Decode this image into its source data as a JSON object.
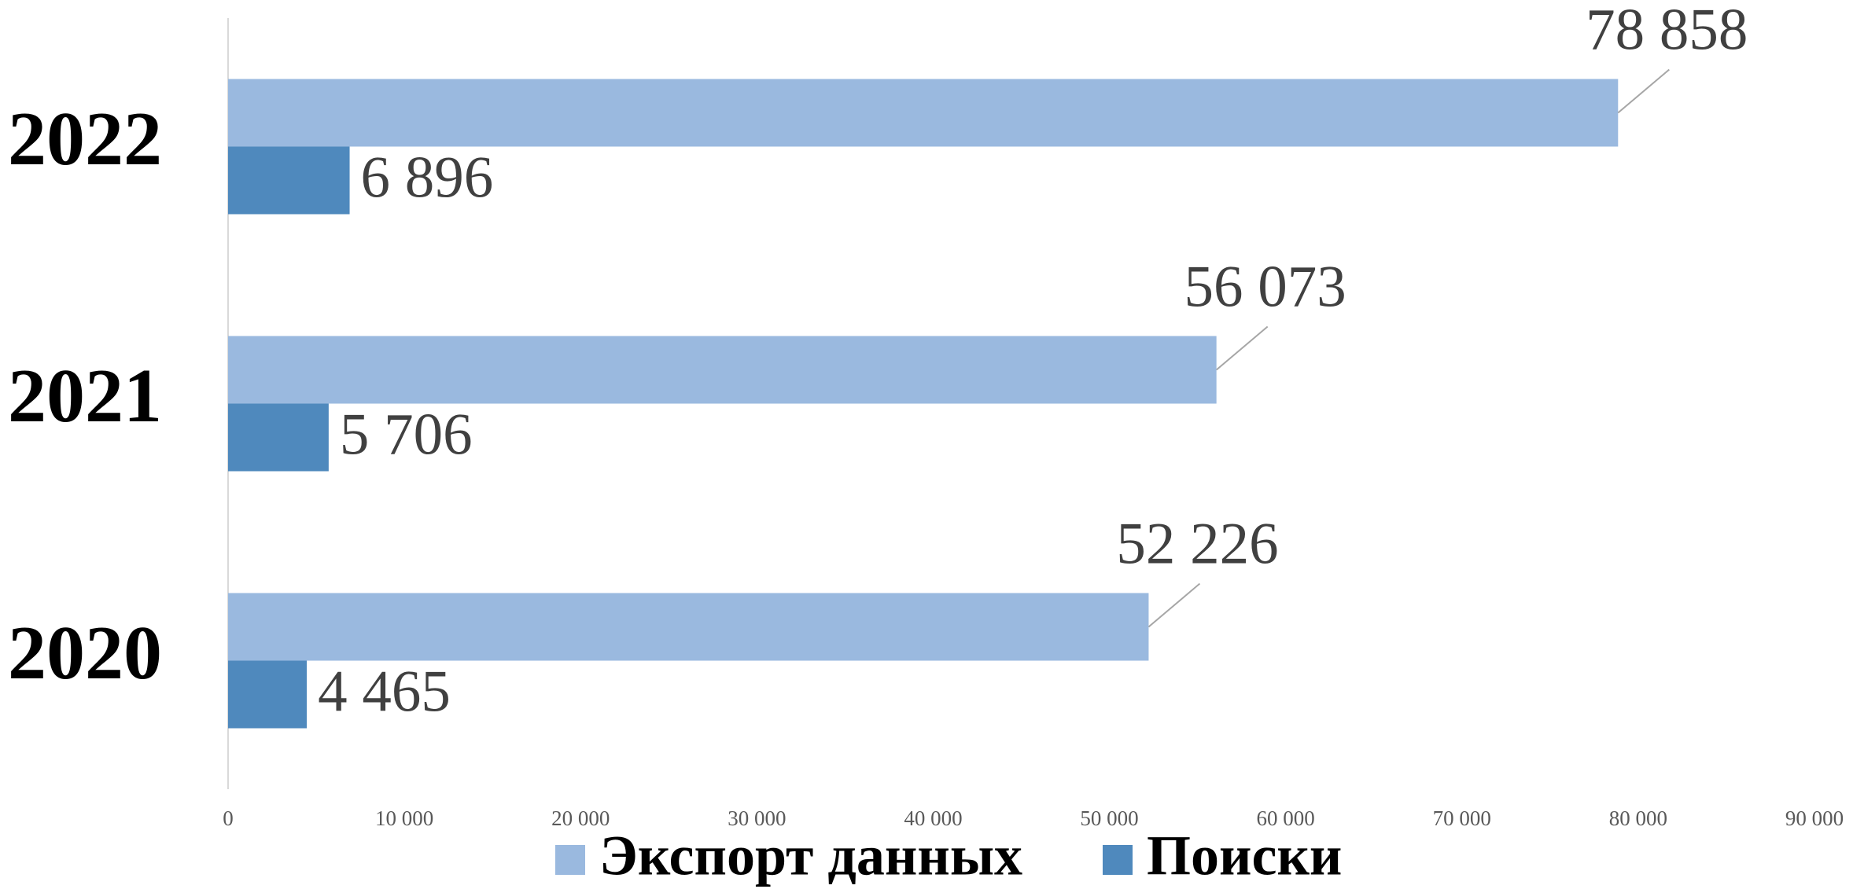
{
  "chart_data": {
    "type": "hbar",
    "categories": [
      "2020",
      "2021",
      "2022"
    ],
    "series": [
      {
        "name": "Экспорт данных",
        "color": "#9ab9df",
        "values": [
          52226,
          56073,
          78858
        ],
        "value_labels": [
          "52 226",
          "56 073",
          "78 858"
        ]
      },
      {
        "name": "Поиски",
        "color": "#4f89bd",
        "values": [
          4465,
          5706,
          6896
        ],
        "value_labels": [
          "4 465",
          "5 706",
          "6 896"
        ]
      }
    ],
    "xlim": [
      0,
      90000
    ],
    "xticks": [
      0,
      {
        "value": 10000,
        "label": "10 000"
      },
      {
        "value": 20000,
        "label": "20 000"
      },
      {
        "value": 30000,
        "label": "30 000"
      },
      {
        "value": 40000,
        "label": "40 000"
      },
      {
        "value": 50000,
        "label": "50 000"
      },
      {
        "value": 60000,
        "label": "60 000"
      },
      {
        "value": 70000,
        "label": "70 000"
      },
      {
        "value": 80000,
        "label": "80 000"
      },
      {
        "value": 90000,
        "label": "90 000"
      }
    ],
    "legend": "bottom"
  }
}
